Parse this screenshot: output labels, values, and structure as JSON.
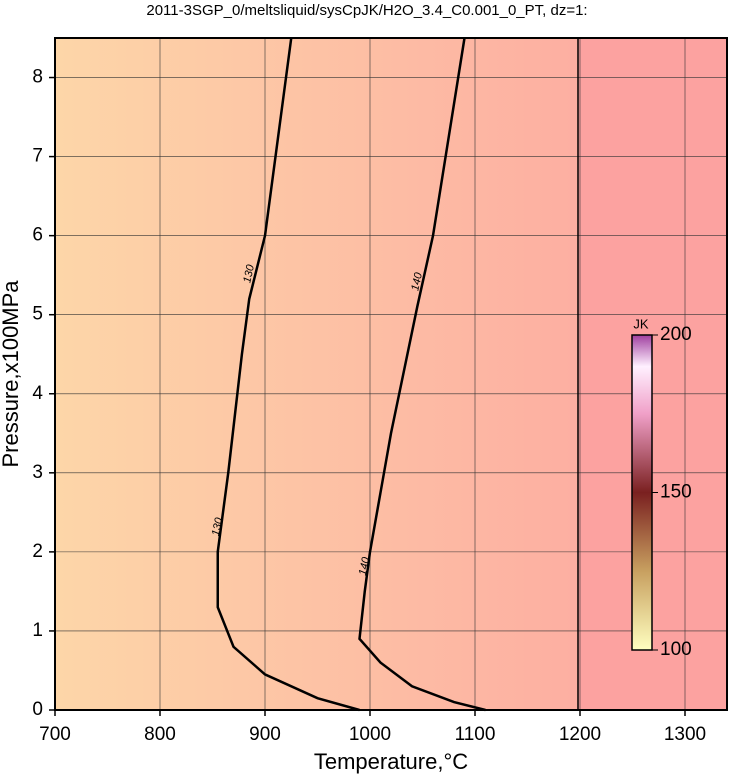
{
  "chart_data": {
    "type": "contour",
    "title": "2011-3SGP_0/meltsliquid/sysCpJK/H2O_3.4_C0.001_0_PT, dz=1:",
    "x_label": "Temperature,°C",
    "y_label": "Pressure,x100MPa",
    "xlim": [
      700,
      1340
    ],
    "ylim": [
      0,
      8.5
    ],
    "xticks": [
      700,
      800,
      900,
      1000,
      1100,
      1200,
      1300
    ],
    "yticks": [
      0,
      1,
      2,
      3,
      4,
      5,
      6,
      7,
      8
    ],
    "grid": true,
    "contours": [
      {
        "level": 130,
        "x": [
          925,
          900,
          885,
          878,
          865,
          855,
          855,
          870,
          900,
          950,
          990
        ],
        "y": [
          8.5,
          6,
          5.2,
          4.5,
          3,
          2,
          1.3,
          0.8,
          0.45,
          0.15,
          0
        ]
      },
      {
        "level": 140,
        "x": [
          1090,
          1060,
          1045,
          1020,
          1000,
          995,
          990,
          1010,
          1040,
          1080,
          1110
        ],
        "y": [
          8.5,
          6,
          5.1,
          3.5,
          2,
          1.5,
          0.9,
          0.6,
          0.3,
          0.1,
          0
        ]
      }
    ],
    "colorbar": {
      "label": "JK",
      "lim": [
        100,
        200
      ],
      "ticks": [
        100,
        150,
        200
      ]
    }
  }
}
